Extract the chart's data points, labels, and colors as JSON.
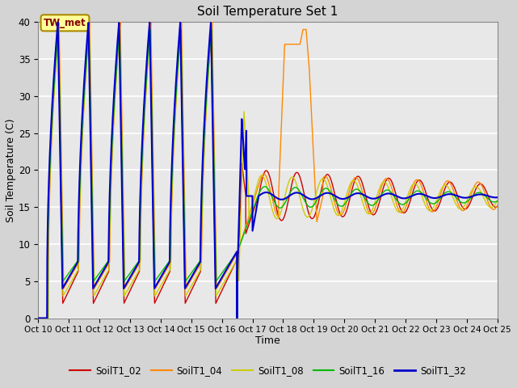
{
  "title": "Soil Temperature Set 1",
  "xlabel": "Time",
  "ylabel": "Soil Temperature (C)",
  "ylim": [
    0,
    40
  ],
  "xtick_labels": [
    "Oct 10",
    "Oct 11",
    "Oct 12",
    "Oct 13",
    "Oct 14",
    "Oct 15",
    "Oct 16",
    "Oct 17",
    "Oct 18",
    "Oct 19",
    "Oct 20",
    "Oct 21",
    "Oct 22",
    "Oct 23",
    "Oct 24",
    "Oct 25"
  ],
  "colors": {
    "SoilT1_02": "#cc0000",
    "SoilT1_04": "#ff8800",
    "SoilT1_08": "#cccc00",
    "SoilT1_16": "#00bb00",
    "SoilT1_32": "#0000cc"
  },
  "annotation": "TW_met",
  "fig_facecolor": "#d4d4d4",
  "ax_facecolor": "#e8e8e8"
}
